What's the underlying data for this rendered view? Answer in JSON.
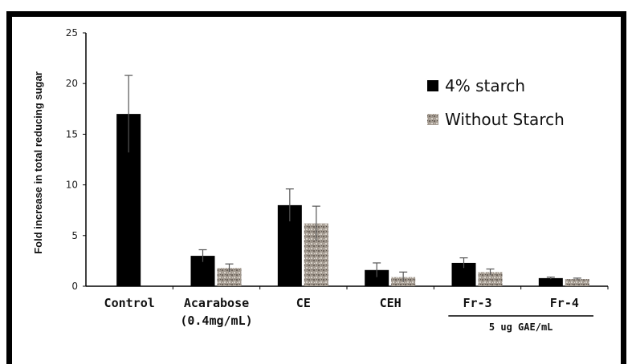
{
  "chart_data": {
    "type": "bar",
    "title": "",
    "xlabel": "",
    "ylabel": "Fold increase in total reducing sugar",
    "ylim": [
      0,
      25
    ],
    "yticks": [
      0,
      5,
      10,
      15,
      20,
      25
    ],
    "grid": false,
    "legend_position": "top-right",
    "categories": [
      {
        "line1": "Control",
        "line2": ""
      },
      {
        "line1": "Acarabose",
        "line2": "(0.4mg/mL)"
      },
      {
        "line1": "CE",
        "line2": ""
      },
      {
        "line1": "CEH",
        "line2": ""
      },
      {
        "line1": "Fr-3",
        "line2": ""
      },
      {
        "line1": "Fr-4",
        "line2": ""
      }
    ],
    "series": [
      {
        "name": "4% starch",
        "color": "#000000",
        "values": [
          17.0,
          3.0,
          8.0,
          1.6,
          2.3,
          0.8
        ],
        "errors": [
          3.8,
          0.6,
          1.6,
          0.7,
          0.5,
          0.1
        ]
      },
      {
        "name": "Without Starch",
        "color": "#8f857c",
        "values": [
          null,
          1.8,
          6.2,
          0.9,
          1.4,
          0.7
        ],
        "errors": [
          null,
          0.4,
          1.7,
          0.5,
          0.3,
          0.1
        ]
      }
    ],
    "annotation": "5 ug GAE/mL"
  }
}
